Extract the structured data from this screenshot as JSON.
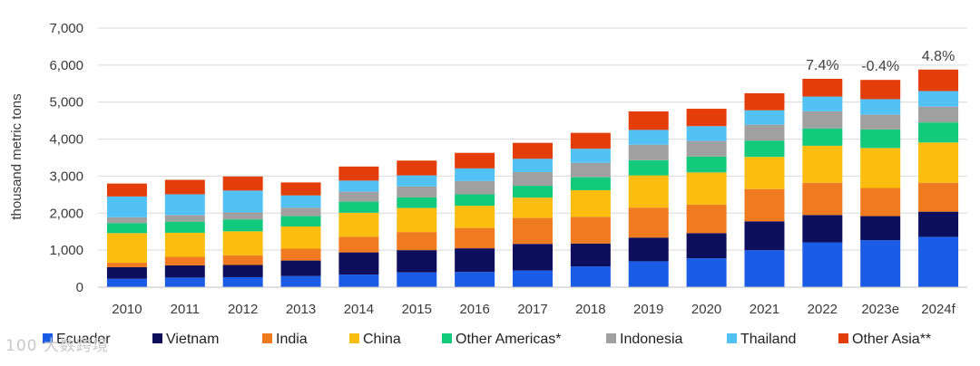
{
  "chart_data": {
    "type": "bar",
    "stacked": true,
    "ylabel": "thousand metric tons",
    "ylim": [
      0,
      7000
    ],
    "yticks": [
      0,
      1000,
      2000,
      3000,
      4000,
      5000,
      6000,
      7000
    ],
    "ytick_labels": [
      "0",
      "1,000",
      "2,000",
      "3,000",
      "4,000",
      "5,000",
      "6,000",
      "7,000"
    ],
    "grid": true,
    "legend_position": "bottom",
    "categories": [
      "2010",
      "2011",
      "2012",
      "2013",
      "2014",
      "2015",
      "2016",
      "2017",
      "2018",
      "2019",
      "2020",
      "2021",
      "2022",
      "2023e",
      "2024f"
    ],
    "series": [
      {
        "name": "Ecuador",
        "color": "#1a5ce6",
        "values": [
          230,
          260,
          270,
          300,
          340,
          400,
          410,
          450,
          560,
          700,
          780,
          1000,
          1210,
          1270,
          1360
        ]
      },
      {
        "name": "Vietnam",
        "color": "#0d0f5c",
        "values": [
          310,
          330,
          330,
          420,
          600,
          600,
          640,
          720,
          620,
          640,
          680,
          780,
          740,
          650,
          680
        ]
      },
      {
        "name": "India",
        "color": "#f07a1f",
        "values": [
          120,
          230,
          260,
          320,
          420,
          490,
          550,
          700,
          720,
          810,
          770,
          870,
          870,
          760,
          780
        ]
      },
      {
        "name": "China",
        "color": "#fbbd0f",
        "values": [
          800,
          650,
          650,
          600,
          650,
          650,
          600,
          550,
          720,
          870,
          870,
          870,
          1000,
          1080,
          1090
        ]
      },
      {
        "name": "Other Americas*",
        "color": "#13c97c",
        "values": [
          270,
          300,
          320,
          280,
          300,
          290,
          310,
          320,
          350,
          410,
          430,
          440,
          470,
          500,
          540
        ]
      },
      {
        "name": "Indonesia",
        "color": "#a0a0a0",
        "values": [
          160,
          180,
          190,
          230,
          270,
          290,
          360,
          370,
          390,
          420,
          420,
          430,
          460,
          400,
          430
        ]
      },
      {
        "name": "Thailand",
        "color": "#52c2f5",
        "values": [
          560,
          560,
          590,
          330,
          300,
          300,
          340,
          360,
          380,
          400,
          400,
          390,
          400,
          420,
          420
        ]
      },
      {
        "name": "Other Asia**",
        "color": "#e33d0a",
        "values": [
          350,
          390,
          380,
          350,
          380,
          400,
          420,
          430,
          430,
          500,
          470,
          460,
          480,
          520,
          580
        ]
      }
    ],
    "annotations": [
      {
        "category": "2022",
        "text": "7.4%"
      },
      {
        "category": "2023e",
        "text": "-0.4%"
      },
      {
        "category": "2024f",
        "text": "4.8%"
      }
    ]
  },
  "watermark": "100 大数跨境"
}
